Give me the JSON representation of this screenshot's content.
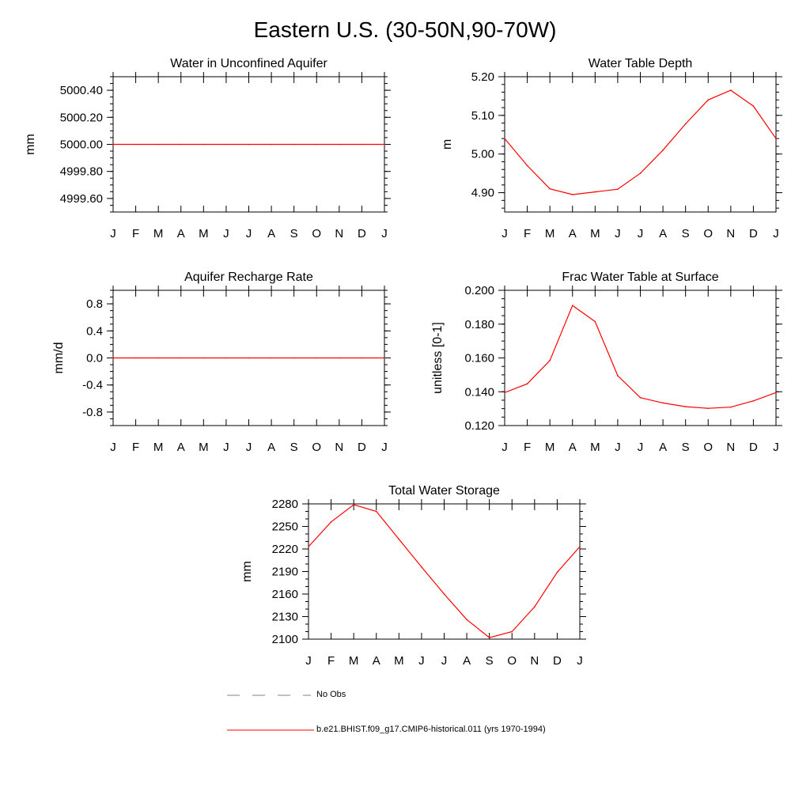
{
  "figure": {
    "title": "Eastern U.S. (30-50N,90-70W)",
    "months": [
      "J",
      "F",
      "M",
      "A",
      "M",
      "J",
      "J",
      "A",
      "S",
      "O",
      "N",
      "D",
      "J"
    ],
    "line_color": "#ff0000",
    "obs_color": "#808080"
  },
  "legend": {
    "obs_label": "No Obs",
    "model_label": "b.e21.BHIST.f09_g17.CMIP6-historical.011 (yrs 1970-1994)"
  },
  "chart_data": [
    {
      "id": "aquifer",
      "type": "line",
      "title": "Water in Unconfined Aquifer",
      "ylabel": "mm",
      "ylim": [
        4999.5,
        5000.5
      ],
      "yticks": [
        4999.6,
        4999.8,
        5000.0,
        5000.2,
        5000.4
      ],
      "ytick_labels": [
        "4999.60",
        "4999.80",
        "5000.00",
        "5000.20",
        "5000.40"
      ],
      "yminor_step": 0.05,
      "series": [
        {
          "values": [
            5000,
            5000,
            5000,
            5000,
            5000,
            5000,
            5000,
            5000,
            5000,
            5000,
            5000,
            5000,
            5000
          ]
        }
      ]
    },
    {
      "id": "wtd",
      "type": "line",
      "title": "Water Table Depth",
      "ylabel": "m",
      "ylim": [
        4.85,
        5.2
      ],
      "yticks": [
        4.9,
        5.0,
        5.1,
        5.2
      ],
      "ytick_labels": [
        "4.90",
        "5.00",
        "5.10",
        "5.20"
      ],
      "yminor_step": 0.02,
      "series": [
        {
          "values": [
            5.04,
            4.97,
            4.91,
            4.895,
            4.902,
            4.909,
            4.95,
            5.01,
            5.078,
            5.14,
            5.165,
            5.124,
            5.04
          ]
        }
      ]
    },
    {
      "id": "recharge",
      "type": "line",
      "title": "Aquifer Recharge Rate",
      "ylabel": "mm/d",
      "ylim": [
        -1.0,
        1.0
      ],
      "yticks": [
        -0.8,
        -0.4,
        0.0,
        0.4,
        0.8
      ],
      "ytick_labels": [
        "-0.8",
        "-0.4",
        "0.0",
        "0.4",
        "0.8"
      ],
      "yminor_step": 0.1,
      "series": [
        {
          "values": [
            0,
            0,
            0,
            0,
            0,
            0,
            0,
            0,
            0,
            0,
            0,
            0,
            0
          ]
        }
      ]
    },
    {
      "id": "fracsat",
      "type": "line",
      "title": "Frac Water Table at Surface",
      "ylabel": "unitless [0-1]",
      "ylim": [
        0.12,
        0.2
      ],
      "yticks": [
        0.12,
        0.14,
        0.16,
        0.18,
        0.2
      ],
      "ytick_labels": [
        "0.120",
        "0.140",
        "0.160",
        "0.180",
        "0.200"
      ],
      "yminor_step": 0.005,
      "series": [
        {
          "values": [
            0.1395,
            0.1447,
            0.1585,
            0.191,
            0.1815,
            0.1495,
            0.1365,
            0.1334,
            0.1312,
            0.1302,
            0.1309,
            0.1346,
            0.1395
          ]
        }
      ]
    },
    {
      "id": "tws",
      "type": "line",
      "title": "Total Water Storage",
      "ylabel": "mm",
      "ylim": [
        2100,
        2280
      ],
      "yticks": [
        2100,
        2130,
        2160,
        2190,
        2220,
        2250,
        2280
      ],
      "ytick_labels": [
        "2100",
        "2130",
        "2160",
        "2190",
        "2220",
        "2250",
        "2280"
      ],
      "yminor_step": 10,
      "series": [
        {
          "values": [
            2223,
            2256,
            2279,
            2270,
            2233,
            2196,
            2160,
            2126,
            2102,
            2110,
            2143,
            2189,
            2223
          ]
        }
      ]
    }
  ]
}
